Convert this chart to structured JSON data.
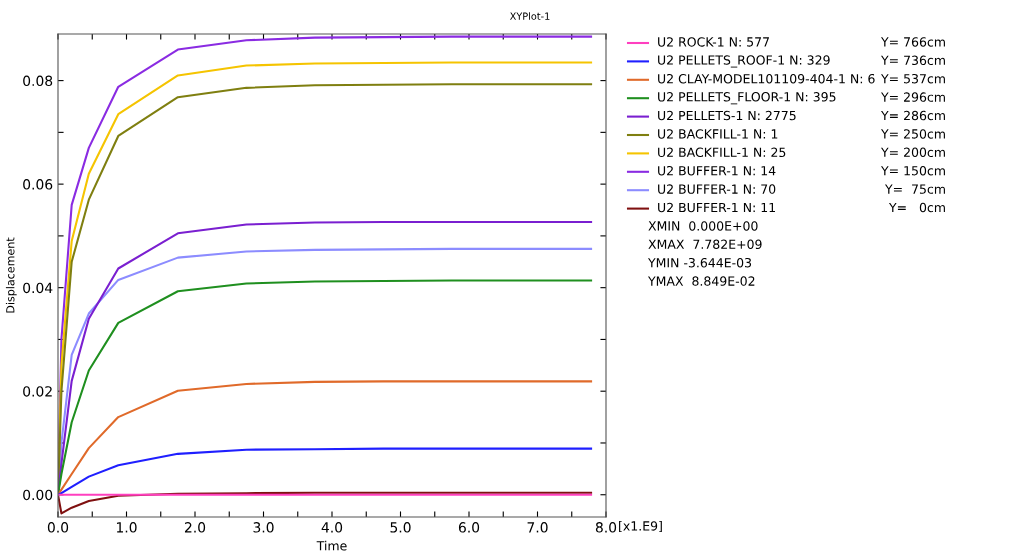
{
  "chart_data": {
    "type": "line",
    "title": "XYPlot-1",
    "xlabel": "Time",
    "ylabel": "Displacement",
    "x": [
      0,
      0.05,
      0.2,
      0.45,
      0.88,
      1.75,
      2.75,
      3.75,
      4.75,
      5.75,
      6.75,
      7.782
    ],
    "xlim": [
      0,
      8
    ],
    "ylim": [
      -0.0043,
      0.089
    ],
    "xticks": [
      {
        "value": 0,
        "label": "0.0"
      },
      {
        "value": 0.5,
        "label": null
      },
      {
        "value": 1,
        "label": "1.0"
      },
      {
        "value": 1.5,
        "label": null
      },
      {
        "value": 2,
        "label": "2.0"
      },
      {
        "value": 2.5,
        "label": null
      },
      {
        "value": 3,
        "label": "3.0"
      },
      {
        "value": 3.5,
        "label": null
      },
      {
        "value": 4,
        "label": "4.0"
      },
      {
        "value": 4.5,
        "label": null
      },
      {
        "value": 5,
        "label": "5.0"
      },
      {
        "value": 5.5,
        "label": null
      },
      {
        "value": 6,
        "label": "6.0"
      },
      {
        "value": 6.5,
        "label": null
      },
      {
        "value": 7,
        "label": "7.0"
      },
      {
        "value": 7.5,
        "label": null
      },
      {
        "value": 8,
        "label": "8.0"
      }
    ],
    "yticks": [
      {
        "value": 0,
        "label": "0.00"
      },
      {
        "value": 0.01,
        "label": null
      },
      {
        "value": 0.02,
        "label": "0.02"
      },
      {
        "value": 0.03,
        "label": null
      },
      {
        "value": 0.04,
        "label": "0.04"
      },
      {
        "value": 0.05,
        "label": null
      },
      {
        "value": 0.06,
        "label": "0.06"
      },
      {
        "value": 0.07,
        "label": null
      },
      {
        "value": 0.08,
        "label": "0.08"
      }
    ],
    "grid": false,
    "legend": "right",
    "marker": "none",
    "line_style": "solid",
    "series": [
      {
        "name": "U2 ROCK-1 N: 577",
        "color": "#ff3fbf",
        "values": [
          0,
          0,
          0,
          0,
          0,
          0,
          0,
          0,
          0,
          0,
          0,
          0
        ]
      },
      {
        "name": "U2 PELLETS_ROOF-1 N: 329",
        "color": "#1f1fff",
        "values": [
          0,
          0.0003,
          0.0015,
          0.0035,
          0.0057,
          0.0079,
          0.0087,
          0.0088,
          0.0089,
          0.0089,
          0.0089,
          0.0089
        ]
      },
      {
        "name": "U2 CLAY-MODEL101109-404-1 N: 6",
        "color": "#e06a2a",
        "values": [
          0,
          0.001,
          0.004,
          0.009,
          0.015,
          0.0201,
          0.0214,
          0.0218,
          0.0219,
          0.0219,
          0.0219,
          0.0219
        ]
      },
      {
        "name": "U2 PELLETS_FLOOR-1 N: 395",
        "color": "#1f8f1f",
        "values": [
          0,
          0.004,
          0.014,
          0.024,
          0.0332,
          0.0393,
          0.0408,
          0.0412,
          0.0413,
          0.0414,
          0.0414,
          0.0414
        ]
      },
      {
        "name": "U2 PELLETS-1 N: 2775",
        "color": "#7a1fd0",
        "values": [
          0,
          0.006,
          0.022,
          0.034,
          0.0437,
          0.0505,
          0.0522,
          0.0526,
          0.0527,
          0.0527,
          0.0527,
          0.0527
        ]
      },
      {
        "name": "U2 BACKFILL-1 N: 1",
        "color": "#7f7f10",
        "values": [
          0,
          0.02,
          0.045,
          0.057,
          0.0693,
          0.0768,
          0.0786,
          0.0791,
          0.0792,
          0.0793,
          0.0793,
          0.0793
        ]
      },
      {
        "name": "U2 BACKFILL-1 N: 25",
        "color": "#f5c400",
        "values": [
          0,
          0.025,
          0.049,
          0.062,
          0.0735,
          0.081,
          0.0829,
          0.0833,
          0.0834,
          0.0835,
          0.0835,
          0.0835
        ]
      },
      {
        "name": "U2 BUFFER-1 N: 14",
        "color": "#8a2be2",
        "values": [
          0,
          0.03,
          0.056,
          0.067,
          0.0788,
          0.086,
          0.0878,
          0.0883,
          0.0884,
          0.0885,
          0.0885,
          0.0885
        ]
      },
      {
        "name": "U2 BUFFER-1 N: 70",
        "color": "#8c8cff",
        "values": [
          0,
          0.01,
          0.027,
          0.035,
          0.0415,
          0.0458,
          0.047,
          0.0473,
          0.0474,
          0.0475,
          0.0475,
          0.0475
        ]
      },
      {
        "name": "U2 BUFFER-1 N: 11",
        "color": "#7f1010",
        "values": [
          0,
          -0.0036,
          -0.0025,
          -0.0012,
          -0.0002,
          0.0002,
          0.0003,
          0.0004,
          0.0004,
          0.0004,
          0.0004,
          0.0004
        ]
      }
    ],
    "annotations": [
      "Y= 766cm",
      "Y= 736cm",
      "Y= 537cm",
      "Y= 296cm",
      "Y= 286cm",
      "Y= 250cm",
      "Y= 200cm",
      "Y= 150cm",
      "Y=  75cm",
      "Y=   0cm",
      "XMIN  0.000E+00",
      "XMAX  7.782E+09",
      "YMIN -3.644E-03",
      "YMAX  8.849E-02",
      "[x1.E9]"
    ]
  }
}
